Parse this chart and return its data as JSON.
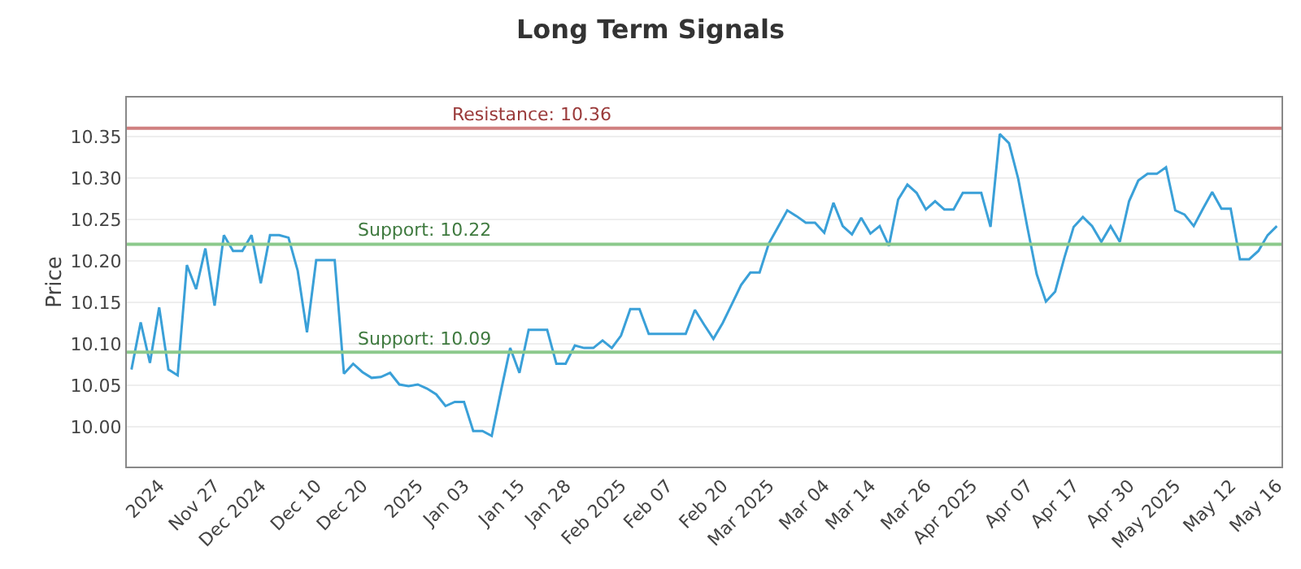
{
  "chart_data": {
    "type": "line",
    "title": "Long Term Signals",
    "ylabel": "Price",
    "categories": [
      null,
      null,
      null,
      "2024",
      null,
      null,
      null,
      null,
      null,
      "Nov 27",
      null,
      null,
      null,
      null,
      "Dec 2024",
      null,
      null,
      null,
      null,
      null,
      "Dec 10",
      null,
      null,
      null,
      null,
      "Dec 20",
      null,
      null,
      null,
      null,
      null,
      "2025",
      null,
      null,
      null,
      null,
      "Jan 03",
      null,
      null,
      null,
      null,
      null,
      "Jan 15",
      null,
      null,
      null,
      null,
      "Jan 28",
      null,
      null,
      null,
      null,
      null,
      "Feb 2025",
      null,
      null,
      null,
      null,
      "Feb 07",
      null,
      null,
      null,
      null,
      null,
      "Feb 20",
      null,
      null,
      null,
      null,
      "Mar 2025",
      null,
      null,
      null,
      null,
      null,
      "Mar 04",
      null,
      null,
      null,
      null,
      "Mar 14",
      null,
      null,
      null,
      null,
      null,
      "Mar 26",
      null,
      null,
      null,
      null,
      "Apr 2025",
      null,
      null,
      null,
      null,
      null,
      "Apr 07",
      null,
      null,
      null,
      null,
      "Apr 17",
      null,
      null,
      null,
      null,
      null,
      "Apr 30",
      null,
      null,
      null,
      null,
      "May 2025",
      null,
      null,
      null,
      null,
      null,
      "May 12",
      null,
      null,
      null,
      null,
      "May 16"
    ],
    "series": [
      {
        "color": "#3aa0d8",
        "values": [
          10.069,
          10.126,
          10.077,
          10.144,
          10.069,
          10.062,
          10.195,
          10.166,
          10.215,
          10.146,
          10.231,
          10.212,
          10.212,
          10.231,
          10.173,
          10.231,
          10.231,
          10.228,
          10.188,
          10.114,
          10.201,
          10.201,
          10.201,
          10.064,
          10.076,
          10.066,
          10.059,
          10.06,
          10.065,
          10.051,
          10.049,
          10.051,
          10.046,
          10.039,
          10.025,
          10.03,
          10.03,
          9.995,
          9.995,
          9.989,
          10.043,
          10.095,
          10.065,
          10.117,
          10.117,
          10.117,
          10.076,
          10.076,
          10.098,
          10.095,
          10.095,
          10.104,
          10.095,
          10.11,
          10.142,
          10.142,
          10.112,
          10.112,
          10.112,
          10.112,
          10.112,
          10.141,
          10.123,
          10.106,
          10.125,
          10.148,
          10.171,
          10.186,
          10.186,
          10.221,
          10.241,
          10.261,
          10.254,
          10.246,
          10.246,
          10.234,
          10.27,
          10.242,
          10.232,
          10.252,
          10.233,
          10.242,
          10.218,
          10.274,
          10.292,
          10.282,
          10.262,
          10.272,
          10.262,
          10.262,
          10.282,
          10.282,
          10.282,
          10.241,
          10.353,
          10.342,
          10.299,
          10.24,
          10.184,
          10.151,
          10.163,
          10.204,
          10.241,
          10.253,
          10.242,
          10.223,
          10.242,
          10.223,
          10.272,
          10.297,
          10.305,
          10.305,
          10.313,
          10.261,
          10.256,
          10.242,
          10.263,
          10.283,
          10.263,
          10.263,
          10.202,
          10.202,
          10.212,
          10.231,
          10.242
        ]
      }
    ],
    "ylim": [
      9.952,
      10.397
    ],
    "yticks": [
      {
        "value": 10.0,
        "label": "10.00"
      },
      {
        "value": 10.05,
        "label": "10.05"
      },
      {
        "value": 10.1,
        "label": "10.10"
      },
      {
        "value": 10.15,
        "label": "10.15"
      },
      {
        "value": 10.2,
        "label": "10.20"
      },
      {
        "value": 10.25,
        "label": "10.25"
      },
      {
        "value": 10.3,
        "label": "10.30"
      },
      {
        "value": 10.35,
        "label": "10.35"
      }
    ],
    "grid": "y",
    "marker": "none",
    "line_style": "solid",
    "ref_lines": [
      {
        "axis": "y",
        "value": 10.36,
        "label": "Resistance: 10.36",
        "color": "#d08080"
      },
      {
        "axis": "y",
        "value": 10.22,
        "label": "Support: 10.22",
        "color": "#8cc98c"
      },
      {
        "axis": "y",
        "value": 10.09,
        "label": "Support: 10.09",
        "color": "#8cc98c"
      }
    ]
  }
}
